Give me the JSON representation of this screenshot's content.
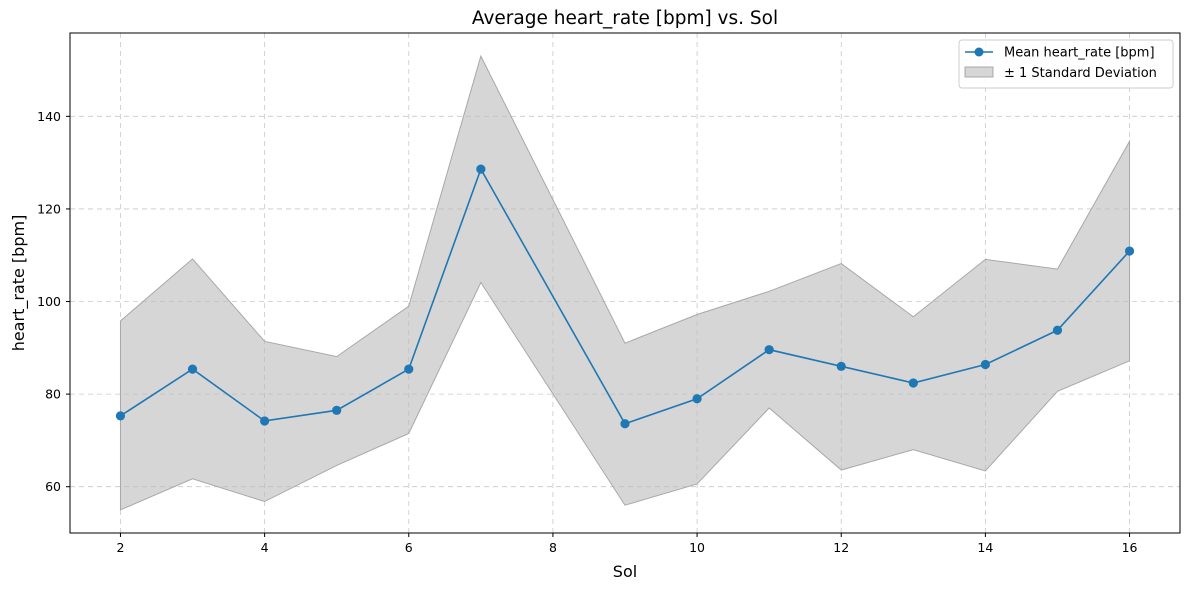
{
  "chart_data": {
    "type": "line",
    "title": "Average heart_rate [bpm] vs. Sol",
    "xlabel": "Sol",
    "ylabel": "heart_rate [bpm]",
    "xlim": [
      1.3,
      16.7
    ],
    "ylim": [
      50,
      158
    ],
    "x_ticks": [
      2,
      4,
      6,
      8,
      10,
      12,
      14,
      16
    ],
    "y_ticks": [
      60,
      80,
      100,
      120,
      140
    ],
    "grid": true,
    "legend_position": "top-right",
    "x": [
      2,
      3,
      4,
      5,
      6,
      7,
      9,
      10,
      11,
      12,
      13,
      14,
      15,
      16
    ],
    "series": [
      {
        "name": "Mean heart_rate [bpm]",
        "color": "#1f77b4",
        "values": [
          75.3,
          85.4,
          74.2,
          76.5,
          85.4,
          128.6,
          73.6,
          79.0,
          89.6,
          86.0,
          82.4,
          86.4,
          93.8,
          110.9
        ]
      }
    ],
    "band": {
      "name": "± 1 Standard Deviation",
      "color": "#bbbbbb",
      "upper": [
        95.8,
        109.2,
        91.4,
        88.1,
        99.0,
        153.0,
        91.0,
        97.2,
        102.2,
        108.2,
        96.7,
        109.1,
        107.0,
        134.6
      ],
      "lower": [
        55.0,
        61.7,
        56.8,
        64.6,
        71.5,
        104.1,
        56.0,
        60.6,
        77.0,
        63.6,
        68.0,
        63.4,
        80.6,
        87.2
      ]
    }
  }
}
